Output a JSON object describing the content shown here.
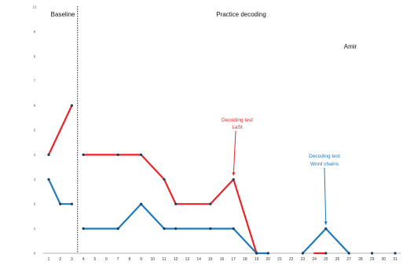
{
  "chart_data": {
    "type": "line",
    "x": [
      1,
      2,
      3,
      4,
      5,
      6,
      7,
      8,
      9,
      10,
      11,
      12,
      13,
      14,
      15,
      16,
      17,
      18,
      19,
      20,
      21,
      22,
      23,
      24,
      25,
      26,
      27,
      28,
      29,
      30,
      31
    ],
    "x_tick_labels": [
      "1",
      "2",
      "3",
      "4",
      "5",
      "6",
      "7",
      "8",
      "9",
      "10",
      "11",
      "12",
      "13",
      "14",
      "15",
      "16",
      "17",
      "18",
      "19",
      "20",
      "21",
      "22",
      "23",
      "24",
      "25",
      "26",
      "27",
      "28",
      "29",
      "30",
      "31"
    ],
    "xlim": [
      1,
      31
    ],
    "ylim": [
      0,
      10
    ],
    "y_ticks": [
      "0",
      "1",
      "2",
      "3",
      "4",
      "5",
      "6",
      "7",
      "8",
      "9",
      "10"
    ],
    "title": "",
    "xlabel": "",
    "ylabel": "",
    "phase_change_after_x": 3,
    "phases": [
      {
        "label": "Baseline",
        "x_from": 1,
        "x_to": 3
      },
      {
        "label": "Practice decoding",
        "x_from": 4,
        "x_to": 31
      }
    ],
    "participant_label": "Amir",
    "series": [
      {
        "color": "#e8262a",
        "segments": [
          [
            [
              1,
              4
            ],
            [
              3,
              6
            ]
          ],
          [
            [
              4,
              4
            ],
            [
              7,
              4
            ],
            [
              9,
              4
            ],
            [
              11,
              3
            ],
            [
              12,
              2
            ],
            [
              15,
              2
            ],
            [
              17,
              3
            ],
            [
              19,
              0
            ]
          ],
          [
            [
              24,
              0
            ],
            [
              25,
              0
            ]
          ]
        ],
        "points": [
          [
            1,
            4
          ],
          [
            3,
            6
          ],
          [
            4,
            4
          ],
          [
            7,
            4
          ],
          [
            9,
            4
          ],
          [
            11,
            3
          ],
          [
            12,
            2
          ],
          [
            15,
            2
          ],
          [
            17,
            3
          ],
          [
            19,
            0
          ],
          [
            25,
            0
          ]
        ]
      },
      {
        "color": "#1f7bc0",
        "segments": [
          [
            [
              1,
              3
            ],
            [
              2,
              2
            ],
            [
              3,
              2
            ]
          ],
          [
            [
              4,
              1
            ],
            [
              7,
              1
            ],
            [
              9,
              2
            ],
            [
              11,
              1
            ],
            [
              12,
              1
            ],
            [
              15,
              1
            ],
            [
              17,
              1
            ],
            [
              19,
              0
            ],
            [
              20,
              0
            ]
          ],
          [
            [
              23,
              0
            ],
            [
              25,
              1
            ],
            [
              27,
              0
            ]
          ]
        ],
        "points": [
          [
            1,
            3
          ],
          [
            2,
            2
          ],
          [
            3,
            2
          ],
          [
            4,
            1
          ],
          [
            7,
            1
          ],
          [
            9,
            2
          ],
          [
            11,
            1
          ],
          [
            12,
            1
          ],
          [
            15,
            1
          ],
          [
            17,
            1
          ],
          [
            19,
            0
          ],
          [
            20,
            0
          ],
          [
            23,
            0
          ],
          [
            25,
            1
          ],
          [
            27,
            0
          ],
          [
            29,
            0
          ],
          [
            31,
            0
          ]
        ]
      }
    ],
    "annotations": [
      {
        "lines": [
          "Decoding test",
          "LaSt"
        ],
        "color": "#e8262a",
        "target": [
          17,
          3
        ]
      },
      {
        "lines": [
          "Decoding test",
          "Word chains"
        ],
        "color": "#1f7bc0",
        "target": [
          25,
          1
        ]
      }
    ]
  }
}
